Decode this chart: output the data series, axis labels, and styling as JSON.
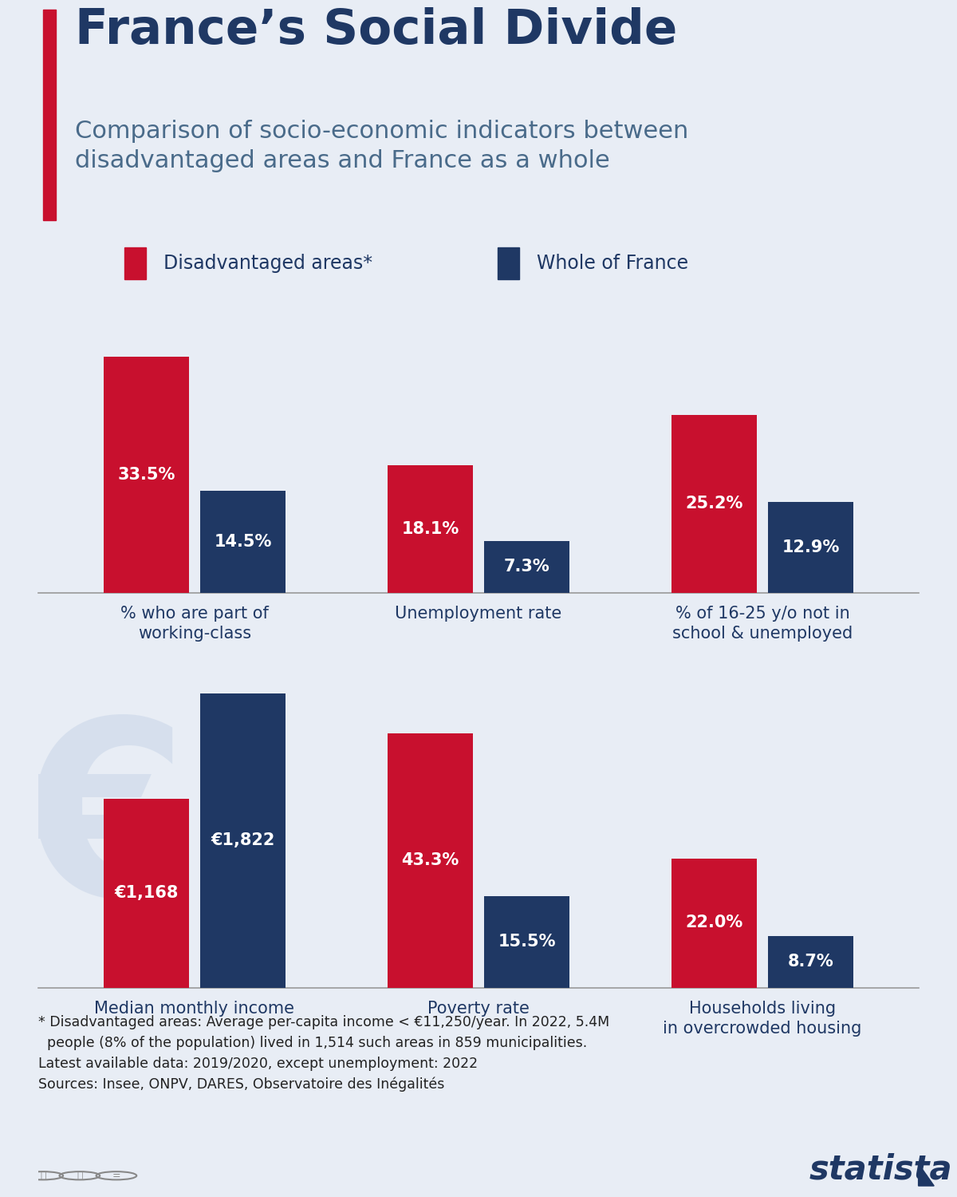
{
  "title": "France’s Social Divide",
  "subtitle": "Comparison of socio-economic indicators between\ndisadvantaged areas and France as a whole",
  "legend_labels": [
    "Disadvantaged areas*",
    "Whole of France"
  ],
  "red_color": "#C8102E",
  "blue_color": "#1F3864",
  "bg_color": "#E8EDF5",
  "page_bg": "#E8EDF5",
  "title_color": "#1F3864",
  "subtitle_color": "#4A6B8A",
  "panel1": {
    "categories": [
      "% who are part of\nworking-class",
      "Unemployment rate",
      "% of 16-25 y/o not in\nschool & unemployed"
    ],
    "red_values": [
      33.5,
      18.1,
      25.2
    ],
    "blue_values": [
      14.5,
      7.3,
      12.9
    ],
    "red_labels": [
      "33.5%",
      "18.1%",
      "25.2%"
    ],
    "blue_labels": [
      "14.5%",
      "7.3%",
      "12.9%"
    ],
    "ylim": [
      0,
      40
    ]
  },
  "panel2": {
    "categories": [
      "Median monthly income",
      "Poverty rate",
      "Households living\nin overcrowded housing"
    ],
    "red_display": [
      32.1,
      43.3,
      22.0
    ],
    "blue_display": [
      50.0,
      15.5,
      8.7
    ],
    "red_labels": [
      "€1,168",
      "43.3%",
      "22.0%"
    ],
    "blue_labels": [
      "€1,822",
      "15.5%",
      "8.7%"
    ],
    "ylim": [
      0,
      55
    ]
  },
  "footnote_lines": [
    "* Disadvantaged areas: Average per-capita income < €11,250/year. In 2022, 5.4M",
    "  people (8% of the population) lived in 1,514 such areas in 859 municipalities.",
    "Latest available data: 2019/2020, except unemployment: 2022",
    "Sources: Insee, ONPV, DARES, Observatoire des Inégalités"
  ]
}
